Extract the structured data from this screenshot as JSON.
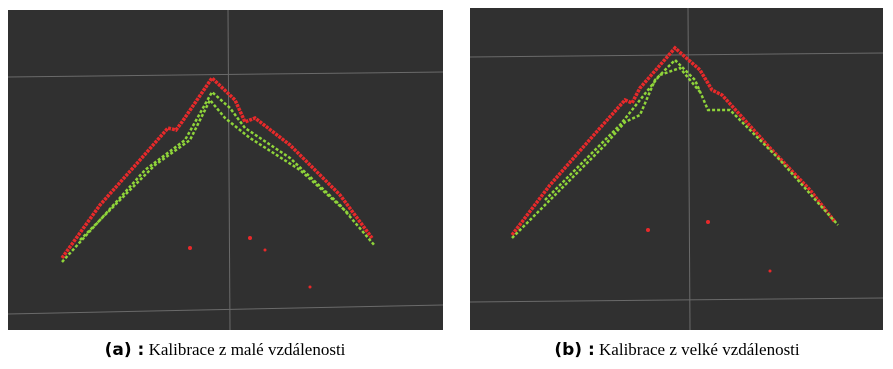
{
  "subfigures": [
    {
      "label": "(a) :",
      "caption": "Kalibrace z malé vzdálenosti"
    },
    {
      "label": "(b) :",
      "caption": "Kalibrace z velké vzdálenosti"
    }
  ]
}
